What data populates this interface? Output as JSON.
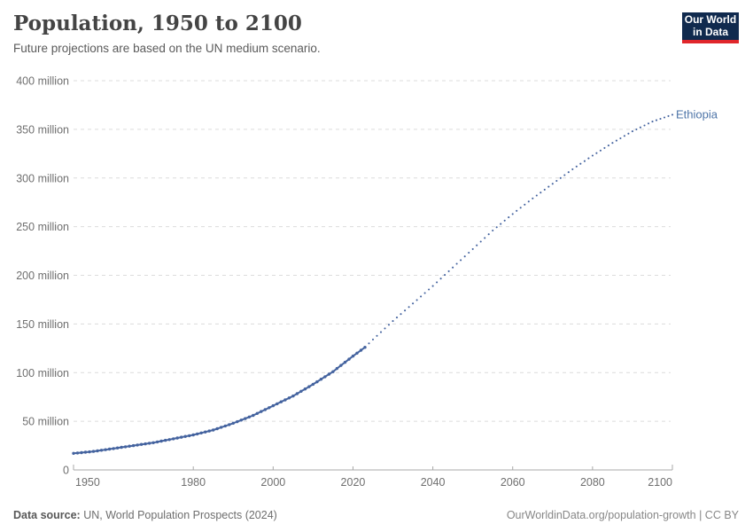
{
  "header": {
    "title": "Population, 1950 to 2100",
    "subtitle": "Future projections are based on the UN medium scenario.",
    "logo": {
      "line1": "Our World",
      "line2": "in Data",
      "bg": "#102a4e",
      "accent": "#e0262b"
    }
  },
  "chart_data": {
    "type": "line",
    "title": "Population, 1950 to 2100",
    "entity_label": "Ethiopia",
    "unit": "million people",
    "series_color": "#44639f",
    "entity_label_color": "#4e75a8",
    "grid": "dashed-horizontal",
    "legend_position": "end-of-line",
    "xlim": [
      1950,
      2100
    ],
    "ylim": [
      0,
      400
    ],
    "historical_until": 2023,
    "projection_style": "dotted",
    "x_ticks": [
      {
        "value": 1950,
        "label": "1950"
      },
      {
        "value": 1980,
        "label": "1980"
      },
      {
        "value": 2000,
        "label": "2000"
      },
      {
        "value": 2020,
        "label": "2020"
      },
      {
        "value": 2040,
        "label": "2040"
      },
      {
        "value": 2060,
        "label": "2060"
      },
      {
        "value": 2080,
        "label": "2080"
      },
      {
        "value": 2100,
        "label": "2100"
      }
    ],
    "y_ticks": [
      {
        "value": 0,
        "label": "0"
      },
      {
        "value": 50,
        "label": "50 million"
      },
      {
        "value": 100,
        "label": "100 million"
      },
      {
        "value": 150,
        "label": "150 million"
      },
      {
        "value": 200,
        "label": "200 million"
      },
      {
        "value": 250,
        "label": "250 million"
      },
      {
        "value": 300,
        "label": "300 million"
      },
      {
        "value": 350,
        "label": "350 million"
      },
      {
        "value": 400,
        "label": "400 million"
      }
    ],
    "series": [
      {
        "name": "Ethiopia",
        "points_year_million": [
          [
            1950,
            17
          ],
          [
            1955,
            19
          ],
          [
            1960,
            22
          ],
          [
            1965,
            25
          ],
          [
            1970,
            28
          ],
          [
            1975,
            32
          ],
          [
            1980,
            36
          ],
          [
            1985,
            41
          ],
          [
            1990,
            48
          ],
          [
            1995,
            56
          ],
          [
            2000,
            66
          ],
          [
            2005,
            76
          ],
          [
            2010,
            88
          ],
          [
            2015,
            101
          ],
          [
            2020,
            117
          ],
          [
            2023,
            126
          ],
          [
            2025,
            134
          ],
          [
            2030,
            153
          ],
          [
            2035,
            171
          ],
          [
            2040,
            189
          ],
          [
            2045,
            208
          ],
          [
            2050,
            227
          ],
          [
            2055,
            246
          ],
          [
            2060,
            263
          ],
          [
            2065,
            279
          ],
          [
            2070,
            294
          ],
          [
            2075,
            309
          ],
          [
            2080,
            323
          ],
          [
            2085,
            336
          ],
          [
            2090,
            348
          ],
          [
            2095,
            358
          ],
          [
            2100,
            365
          ]
        ]
      }
    ]
  },
  "footer": {
    "source_label": "Data source:",
    "source_value": " UN, World Population Prospects (2024)",
    "link": "OurWorldinData.org/population-growth",
    "license": " | CC BY"
  }
}
